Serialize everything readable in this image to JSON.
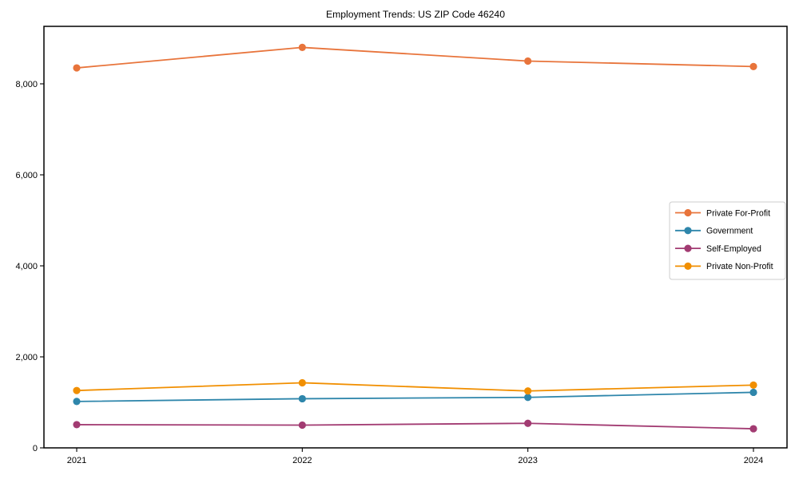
{
  "chart_data": {
    "type": "line",
    "title": "Employment Trends: US ZIP Code 46240",
    "xlabel": "",
    "ylabel": "",
    "x": [
      "2021",
      "2022",
      "2023",
      "2024"
    ],
    "series": [
      {
        "name": "Private For-Profit",
        "color": "#E8743B",
        "values": [
          8350,
          8800,
          8500,
          8380
        ]
      },
      {
        "name": "Government",
        "color": "#2E86AB",
        "values": [
          1020,
          1080,
          1110,
          1220
        ]
      },
      {
        "name": "Self-Employed",
        "color": "#A23B72",
        "values": [
          510,
          500,
          540,
          420
        ]
      },
      {
        "name": "Private Non-Profit",
        "color": "#F18F01",
        "values": [
          1260,
          1430,
          1250,
          1380
        ]
      }
    ],
    "yticks": [
      {
        "value": 0,
        "label": "0"
      },
      {
        "value": 2000,
        "label": "2,000"
      },
      {
        "value": 4000,
        "label": "4,000"
      },
      {
        "value": 6000,
        "label": "6,000"
      },
      {
        "value": 8000,
        "label": "8,000"
      }
    ],
    "ylim": [
      0,
      9260
    ],
    "grid": false,
    "marker": "circle",
    "legend_position": "center right",
    "axis_color": "#000000",
    "legend_border_color": "#cccccc",
    "legend_background": "#ffffff"
  }
}
